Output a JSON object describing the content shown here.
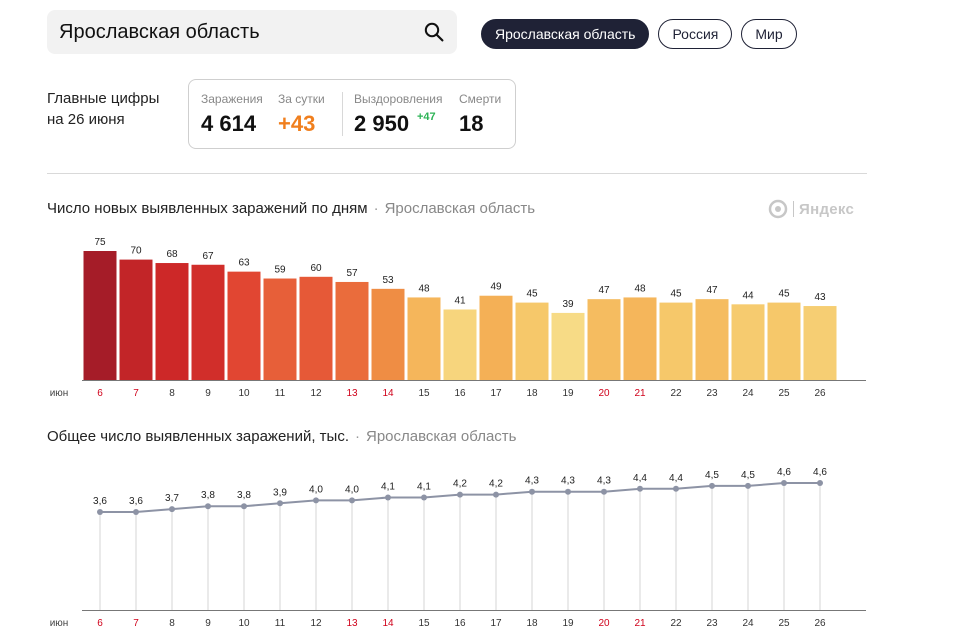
{
  "search": {
    "value": "Ярославская область",
    "icon": "search-icon"
  },
  "region_tabs": [
    {
      "label": "Ярославская область",
      "active": true
    },
    {
      "label": "Россия",
      "active": false
    },
    {
      "label": "Мир",
      "active": false
    }
  ],
  "summary": {
    "title_line1": "Главные цифры",
    "title_line2": "на 26 июня",
    "infections_label": "Заражения",
    "infections_value": "4 614",
    "daily_label": "За сутки",
    "daily_value": "+43",
    "recovered_label": "Выздоровления",
    "recovered_value": "2 950",
    "recovered_delta": "+47",
    "deaths_label": "Смерти",
    "deaths_value": "18"
  },
  "logo": {
    "text": "Яндекс"
  },
  "colors": {
    "accent_orange": "#f07f1e",
    "delta_green": "#2db356",
    "weekend_red": "#d0021b",
    "pill_dark": "#1f2236"
  },
  "chart_data": [
    {
      "type": "bar",
      "title": "Число новых выявленных заражений по дням",
      "region": "Ярославская область",
      "month_label": "июн",
      "categories": [
        "6",
        "7",
        "8",
        "9",
        "10",
        "11",
        "12",
        "13",
        "14",
        "15",
        "16",
        "17",
        "18",
        "19",
        "20",
        "21",
        "22",
        "23",
        "24",
        "25",
        "26"
      ],
      "weekend": [
        "6",
        "7",
        "13",
        "14",
        "20",
        "21"
      ],
      "values": [
        75,
        70,
        68,
        67,
        63,
        59,
        60,
        57,
        53,
        48,
        41,
        49,
        45,
        39,
        47,
        48,
        45,
        47,
        44,
        45,
        43
      ],
      "ylim": [
        0,
        75
      ],
      "grid": false
    },
    {
      "type": "line",
      "title": "Общее число выявленных заражений, тыс.",
      "region": "Ярославская область",
      "month_label": "июн",
      "categories": [
        "6",
        "7",
        "8",
        "9",
        "10",
        "11",
        "12",
        "13",
        "14",
        "15",
        "16",
        "17",
        "18",
        "19",
        "20",
        "21",
        "22",
        "23",
        "24",
        "25",
        "26"
      ],
      "weekend": [
        "6",
        "7",
        "13",
        "14",
        "20",
        "21"
      ],
      "values": [
        3.6,
        3.6,
        3.7,
        3.8,
        3.8,
        3.9,
        4.0,
        4.0,
        4.1,
        4.1,
        4.2,
        4.2,
        4.3,
        4.3,
        4.3,
        4.4,
        4.4,
        4.5,
        4.5,
        4.6,
        4.6
      ],
      "labels": [
        "3,6",
        "3,6",
        "3,7",
        "3,8",
        "3,8",
        "3,9",
        "4,0",
        "4,0",
        "4,1",
        "4,1",
        "4,2",
        "4,2",
        "4,3",
        "4,3",
        "4,3",
        "4,4",
        "4,4",
        "4,5",
        "4,5",
        "4,6",
        "4,6"
      ],
      "grid": false
    }
  ]
}
